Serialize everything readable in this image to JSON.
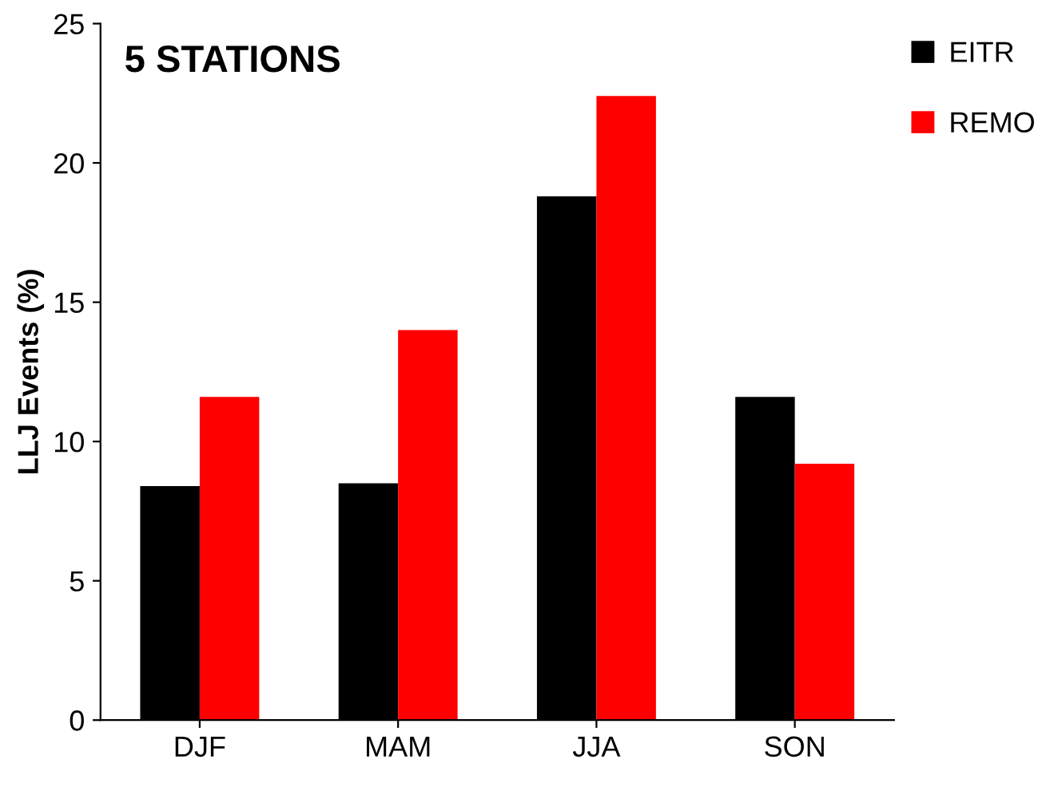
{
  "chart_data": {
    "type": "bar",
    "title": "5 STATIONS",
    "ylabel": "LLJ Events (%)",
    "categories": [
      "DJF",
      "MAM",
      "JJA",
      "SON"
    ],
    "series": [
      {
        "name": "EITR",
        "color": "#000000",
        "values": [
          8.4,
          8.5,
          18.8,
          11.6
        ]
      },
      {
        "name": "REMO",
        "color": "#ff0000",
        "values": [
          11.6,
          14.0,
          22.4,
          9.2
        ]
      }
    ],
    "ylim": [
      0,
      25
    ],
    "yticks": [
      0,
      5,
      10,
      15,
      20,
      25
    ],
    "grid": false,
    "legend": "top right"
  }
}
